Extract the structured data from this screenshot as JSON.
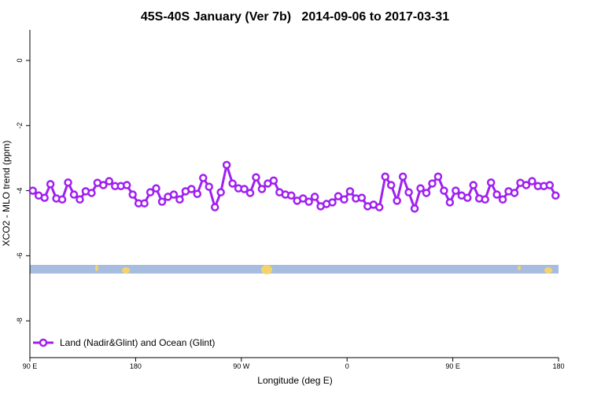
{
  "chart_data": {
    "type": "line",
    "title": "45S-40S January (Ver 7b)   2014-09-06 to 2017-03-31",
    "x_label": "Longitude (deg E)",
    "y_label": "XCO2 - MLO trend (ppm)",
    "x": [
      92.5,
      97.5,
      102.5,
      107.5,
      112.5,
      117.5,
      122.5,
      127.5,
      132.5,
      137.5,
      142.5,
      147.5,
      152.5,
      157.5,
      162.5,
      167.5,
      172.5,
      177.5,
      182.5,
      187.5,
      192.5,
      197.5,
      202.5,
      207.5,
      212.5,
      217.5,
      222.5,
      227.5,
      232.5,
      237.5,
      242.5,
      247.5,
      252.5,
      257.5,
      262.5,
      267.5,
      272.5,
      277.5,
      282.5,
      287.5,
      292.5,
      297.5,
      302.5,
      307.5,
      312.5,
      317.5,
      322.5,
      327.5,
      332.5,
      337.5,
      342.5,
      347.5,
      352.5,
      357.5,
      362.5,
      367.5,
      372.5,
      377.5,
      382.5,
      387.5,
      392.5,
      397.5,
      402.5,
      407.5,
      412.5,
      417.5,
      422.5,
      427.5,
      432.5,
      437.5,
      442.5,
      447.5,
      452.5,
      457.5,
      462.5,
      467.5,
      472.5,
      477.5,
      482.5,
      487.5,
      492.5,
      497.5,
      502.5,
      507.5,
      512.5,
      517.5,
      522.5,
      527.5,
      532.5,
      537.5
    ],
    "series": [
      {
        "name": "Land (Nadir&Glint) and Ocean (Glint)",
        "color": "#a020f0",
        "values": [
          -4.0,
          -4.15,
          -4.22,
          -3.8,
          -4.24,
          -4.27,
          -3.75,
          -4.12,
          -4.27,
          -4.02,
          -4.07,
          -3.76,
          -3.83,
          -3.71,
          -3.86,
          -3.86,
          -3.83,
          -4.12,
          -4.39,
          -4.39,
          -4.05,
          -3.93,
          -4.34,
          -4.19,
          -4.12,
          -4.27,
          -4.02,
          -3.95,
          -4.1,
          -3.61,
          -3.88,
          -4.51,
          -4.05,
          -3.21,
          -3.78,
          -3.93,
          -3.95,
          -4.07,
          -3.59,
          -3.95,
          -3.78,
          -3.69,
          -4.05,
          -4.12,
          -4.15,
          -4.31,
          -4.24,
          -4.34,
          -4.19,
          -4.48,
          -4.41,
          -4.36,
          -4.17,
          -4.27,
          -4.02,
          -4.24,
          -4.22,
          -4.48,
          -4.43,
          -4.51,
          -3.57,
          -3.83,
          -4.31,
          -3.57,
          -4.05,
          -4.55,
          -3.93,
          -4.07,
          -3.78,
          -3.57,
          -4.0,
          -4.36,
          -4.0,
          -4.15,
          -4.22,
          -3.83,
          -4.24,
          -4.27,
          -3.75,
          -4.12,
          -4.27,
          -4.02,
          -4.07,
          -3.76,
          -3.83,
          -3.71,
          -3.86,
          -3.86,
          -3.83,
          -4.15
        ]
      }
    ],
    "xlim": [
      90,
      540
    ],
    "xticks": [
      {
        "value": 90,
        "label": "90 E"
      },
      180,
      {
        "value": 270,
        "label": "90 W"
      },
      {
        "value": 360,
        "label": "0"
      },
      {
        "value": 450,
        "label": "90 E"
      },
      {
        "value": 540,
        "label": "180"
      }
    ],
    "ylim": [
      -9.13,
      0.94
    ],
    "yticks": [
      0,
      -2,
      -4,
      -6,
      -8
    ],
    "legend": "bottom-left"
  }
}
